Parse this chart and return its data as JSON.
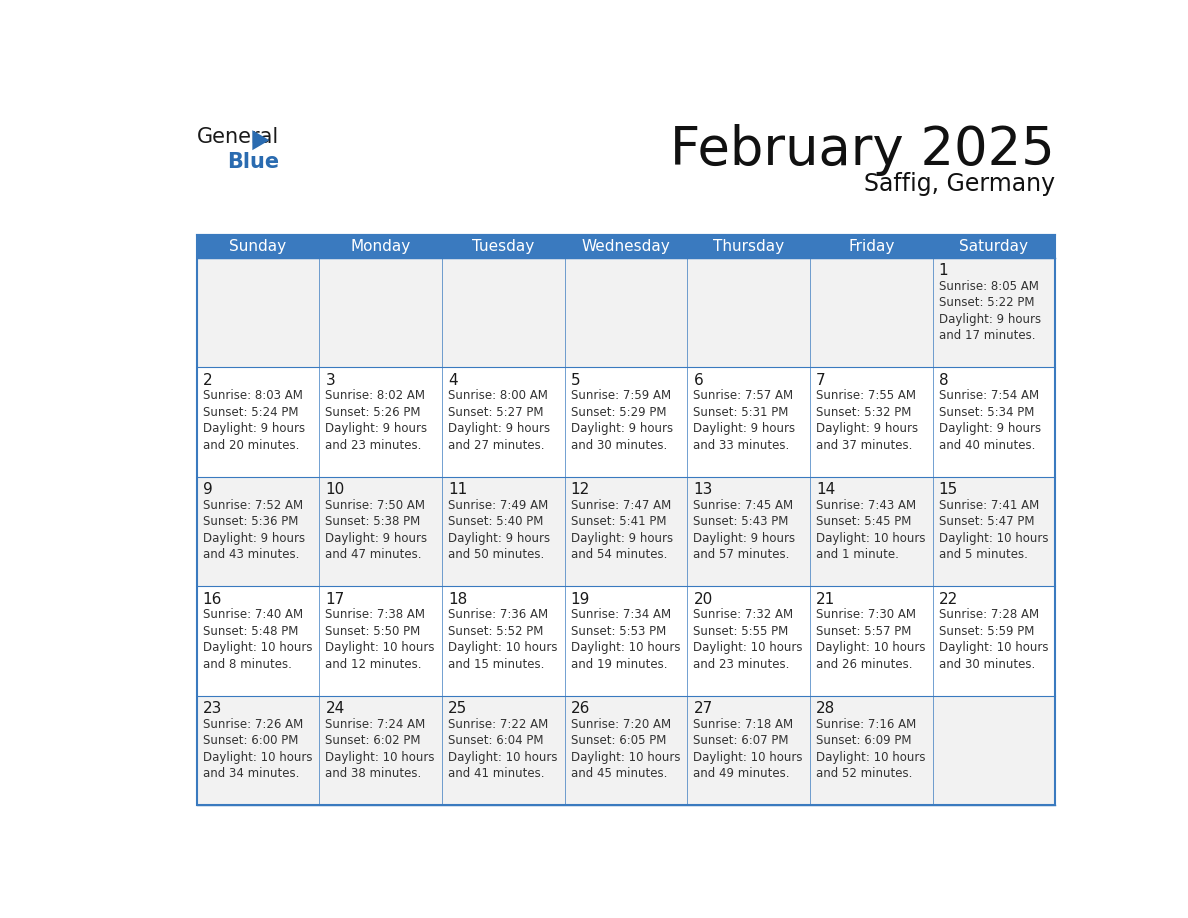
{
  "title": "February 2025",
  "subtitle": "Saffig, Germany",
  "header_color": "#3a7abf",
  "header_text_color": "#ffffff",
  "bg_color": "#ffffff",
  "alt_row_color": "#f2f2f2",
  "border_color": "#3a7abf",
  "text_color": "#333333",
  "day_num_color": "#1a1a1a",
  "days_of_week": [
    "Sunday",
    "Monday",
    "Tuesday",
    "Wednesday",
    "Thursday",
    "Friday",
    "Saturday"
  ],
  "weeks": [
    [
      null,
      null,
      null,
      null,
      null,
      null,
      1
    ],
    [
      2,
      3,
      4,
      5,
      6,
      7,
      8
    ],
    [
      9,
      10,
      11,
      12,
      13,
      14,
      15
    ],
    [
      16,
      17,
      18,
      19,
      20,
      21,
      22
    ],
    [
      23,
      24,
      25,
      26,
      27,
      28,
      null
    ]
  ],
  "cell_data": {
    "1": {
      "sunrise": "8:05 AM",
      "sunset": "5:22 PM",
      "daylight": "9 hours",
      "daylight2": "and 17 minutes."
    },
    "2": {
      "sunrise": "8:03 AM",
      "sunset": "5:24 PM",
      "daylight": "9 hours",
      "daylight2": "and 20 minutes."
    },
    "3": {
      "sunrise": "8:02 AM",
      "sunset": "5:26 PM",
      "daylight": "9 hours",
      "daylight2": "and 23 minutes."
    },
    "4": {
      "sunrise": "8:00 AM",
      "sunset": "5:27 PM",
      "daylight": "9 hours",
      "daylight2": "and 27 minutes."
    },
    "5": {
      "sunrise": "7:59 AM",
      "sunset": "5:29 PM",
      "daylight": "9 hours",
      "daylight2": "and 30 minutes."
    },
    "6": {
      "sunrise": "7:57 AM",
      "sunset": "5:31 PM",
      "daylight": "9 hours",
      "daylight2": "and 33 minutes."
    },
    "7": {
      "sunrise": "7:55 AM",
      "sunset": "5:32 PM",
      "daylight": "9 hours",
      "daylight2": "and 37 minutes."
    },
    "8": {
      "sunrise": "7:54 AM",
      "sunset": "5:34 PM",
      "daylight": "9 hours",
      "daylight2": "and 40 minutes."
    },
    "9": {
      "sunrise": "7:52 AM",
      "sunset": "5:36 PM",
      "daylight": "9 hours",
      "daylight2": "and 43 minutes."
    },
    "10": {
      "sunrise": "7:50 AM",
      "sunset": "5:38 PM",
      "daylight": "9 hours",
      "daylight2": "and 47 minutes."
    },
    "11": {
      "sunrise": "7:49 AM",
      "sunset": "5:40 PM",
      "daylight": "9 hours",
      "daylight2": "and 50 minutes."
    },
    "12": {
      "sunrise": "7:47 AM",
      "sunset": "5:41 PM",
      "daylight": "9 hours",
      "daylight2": "and 54 minutes."
    },
    "13": {
      "sunrise": "7:45 AM",
      "sunset": "5:43 PM",
      "daylight": "9 hours",
      "daylight2": "and 57 minutes."
    },
    "14": {
      "sunrise": "7:43 AM",
      "sunset": "5:45 PM",
      "daylight": "10 hours",
      "daylight2": "and 1 minute."
    },
    "15": {
      "sunrise": "7:41 AM",
      "sunset": "5:47 PM",
      "daylight": "10 hours",
      "daylight2": "and 5 minutes."
    },
    "16": {
      "sunrise": "7:40 AM",
      "sunset": "5:48 PM",
      "daylight": "10 hours",
      "daylight2": "and 8 minutes."
    },
    "17": {
      "sunrise": "7:38 AM",
      "sunset": "5:50 PM",
      "daylight": "10 hours",
      "daylight2": "and 12 minutes."
    },
    "18": {
      "sunrise": "7:36 AM",
      "sunset": "5:52 PM",
      "daylight": "10 hours",
      "daylight2": "and 15 minutes."
    },
    "19": {
      "sunrise": "7:34 AM",
      "sunset": "5:53 PM",
      "daylight": "10 hours",
      "daylight2": "and 19 minutes."
    },
    "20": {
      "sunrise": "7:32 AM",
      "sunset": "5:55 PM",
      "daylight": "10 hours",
      "daylight2": "and 23 minutes."
    },
    "21": {
      "sunrise": "7:30 AM",
      "sunset": "5:57 PM",
      "daylight": "10 hours",
      "daylight2": "and 26 minutes."
    },
    "22": {
      "sunrise": "7:28 AM",
      "sunset": "5:59 PM",
      "daylight": "10 hours",
      "daylight2": "and 30 minutes."
    },
    "23": {
      "sunrise": "7:26 AM",
      "sunset": "6:00 PM",
      "daylight": "10 hours",
      "daylight2": "and 34 minutes."
    },
    "24": {
      "sunrise": "7:24 AM",
      "sunset": "6:02 PM",
      "daylight": "10 hours",
      "daylight2": "and 38 minutes."
    },
    "25": {
      "sunrise": "7:22 AM",
      "sunset": "6:04 PM",
      "daylight": "10 hours",
      "daylight2": "and 41 minutes."
    },
    "26": {
      "sunrise": "7:20 AM",
      "sunset": "6:05 PM",
      "daylight": "10 hours",
      "daylight2": "and 45 minutes."
    },
    "27": {
      "sunrise": "7:18 AM",
      "sunset": "6:07 PM",
      "daylight": "10 hours",
      "daylight2": "and 49 minutes."
    },
    "28": {
      "sunrise": "7:16 AM",
      "sunset": "6:09 PM",
      "daylight": "10 hours",
      "daylight2": "and 52 minutes."
    }
  },
  "logo_general_color": "#1a1a1a",
  "logo_blue_color": "#2a6bb0",
  "logo_triangle_color": "#2a6bb0",
  "title_fontsize": 38,
  "subtitle_fontsize": 17,
  "header_fontsize": 11,
  "day_num_fontsize": 11,
  "cell_fontsize": 8.5
}
